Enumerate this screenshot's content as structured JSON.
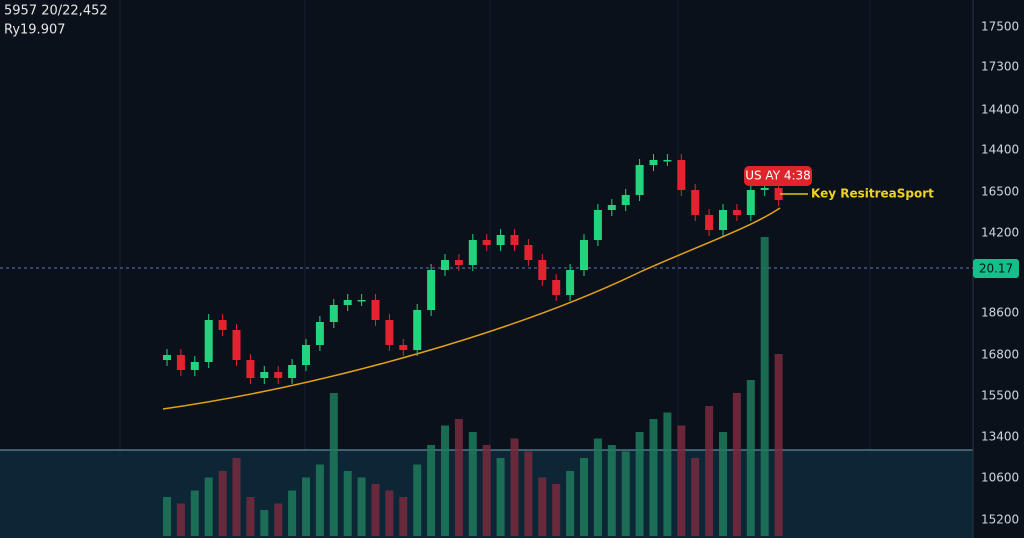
{
  "header": {
    "line1": "5957 20/22,452",
    "line2": "Ry19.907"
  },
  "axis_labels": [
    "17500",
    "17300",
    "14400",
    "14400",
    "16500",
    "14200",
    "18600",
    "16800",
    "15500",
    "13400",
    "10600",
    "15200"
  ],
  "price_tag": "20.17",
  "annotation": "US AY 4:38",
  "callout": "Key ResitreaSport",
  "candles": {
    "open": [
      178,
      183,
      168,
      176,
      218,
      208,
      178,
      160,
      166,
      160,
      173,
      193,
      216,
      233,
      238,
      238,
      218,
      193,
      188,
      228,
      268,
      278,
      273,
      298,
      293,
      303,
      293,
      278,
      258,
      243,
      268,
      298,
      328,
      333,
      343,
      373,
      378,
      378,
      348,
      323,
      308,
      328,
      323,
      348,
      350
    ],
    "close": [
      183,
      168,
      176,
      218,
      208,
      178,
      160,
      166,
      160,
      173,
      193,
      216,
      233,
      238,
      238,
      218,
      193,
      188,
      228,
      268,
      278,
      273,
      298,
      293,
      303,
      293,
      278,
      258,
      243,
      268,
      298,
      328,
      333,
      343,
      373,
      378,
      378,
      348,
      323,
      308,
      328,
      323,
      348,
      350,
      338
    ],
    "high": [
      189,
      189,
      182,
      224,
      224,
      214,
      184,
      172,
      172,
      179,
      199,
      222,
      239,
      244,
      244,
      244,
      224,
      199,
      234,
      274,
      284,
      284,
      304,
      304,
      309,
      309,
      299,
      284,
      264,
      274,
      304,
      334,
      339,
      349,
      379,
      384,
      384,
      384,
      354,
      329,
      334,
      334,
      354,
      356,
      356
    ],
    "low": [
      172,
      162,
      162,
      170,
      202,
      172,
      154,
      154,
      154,
      154,
      167,
      187,
      210,
      227,
      232,
      212,
      187,
      182,
      182,
      222,
      262,
      267,
      267,
      287,
      287,
      287,
      272,
      252,
      237,
      237,
      262,
      292,
      322,
      327,
      337,
      367,
      372,
      342,
      317,
      302,
      302,
      317,
      317,
      342,
      332
    ]
  },
  "volume": [
    30,
    25,
    35,
    45,
    50,
    60,
    30,
    20,
    25,
    35,
    45,
    55,
    110,
    50,
    45,
    40,
    35,
    30,
    55,
    70,
    85,
    90,
    80,
    70,
    60,
    75,
    65,
    45,
    40,
    50,
    60,
    75,
    70,
    65,
    80,
    90,
    95,
    85,
    60,
    100,
    80,
    110,
    120,
    230,
    140
  ]
}
